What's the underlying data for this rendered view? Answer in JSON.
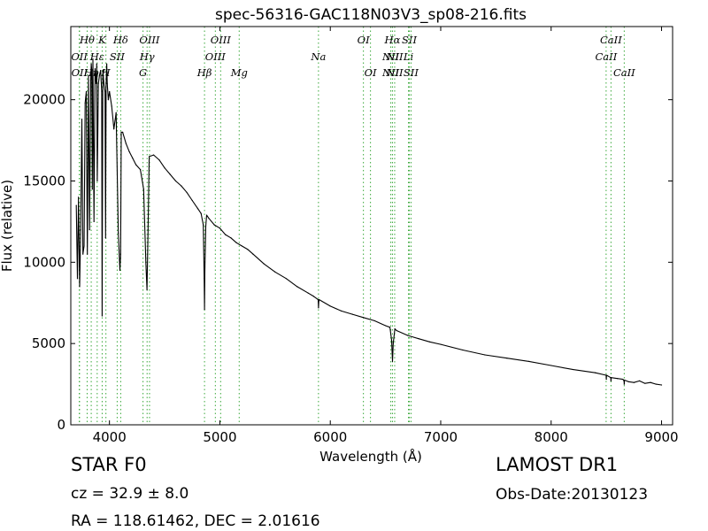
{
  "chart_data": {
    "type": "line",
    "title": "spec-56316-GAC118N03V3_sp08-216.fits",
    "xlabel": "Wavelength (Å)",
    "ylabel": "Flux (relative)",
    "xlim": [
      3650,
      9100
    ],
    "ylim": [
      0,
      24500
    ],
    "x_ticks": [
      4000,
      5000,
      6000,
      7000,
      8000,
      9000
    ],
    "y_ticks": [
      0,
      5000,
      10000,
      15000,
      20000
    ],
    "grid": false,
    "series": [
      {
        "color": "#000000",
        "x": [
          3700,
          3710,
          3720,
          3730,
          3740,
          3750,
          3760,
          3770,
          3780,
          3790,
          3800,
          3810,
          3820,
          3830,
          3835,
          3840,
          3845,
          3850,
          3860,
          3870,
          3880,
          3885,
          3890,
          3900,
          3910,
          3920,
          3930,
          3934,
          3940,
          3950,
          3960,
          3965,
          3970,
          3975,
          3980,
          3990,
          4000,
          4020,
          4040,
          4060,
          4080,
          4095,
          4101,
          4107,
          4120,
          4150,
          4180,
          4210,
          4240,
          4280,
          4310,
          4330,
          4340,
          4350,
          4360,
          4400,
          4450,
          4500,
          4550,
          4600,
          4650,
          4700,
          4750,
          4800,
          4830,
          4850,
          4858,
          4861,
          4864,
          4872,
          4880,
          4900,
          4950,
          5000,
          5050,
          5100,
          5150,
          5200,
          5250,
          5300,
          5400,
          5500,
          5600,
          5700,
          5800,
          5850,
          5890,
          5893,
          5896,
          5900,
          6000,
          6100,
          6200,
          6300,
          6400,
          6500,
          6540,
          6555,
          6563,
          6570,
          6585,
          6600,
          6700,
          6800,
          6900,
          7000,
          7200,
          7400,
          7600,
          7800,
          8000,
          8200,
          8400,
          8498,
          8500,
          8502,
          8540,
          8542,
          8544,
          8600,
          8650,
          8660,
          8662,
          8664,
          8700,
          8750,
          8800,
          8850,
          8900,
          8950,
          9000
        ],
        "values": [
          13500,
          9000,
          14000,
          8500,
          12000,
          18800,
          10500,
          11000,
          19800,
          20500,
          10500,
          21500,
          12000,
          21200,
          22200,
          21800,
          14500,
          22500,
          12500,
          21900,
          21000,
          22200,
          15000,
          21000,
          21500,
          21800,
          20500,
          6700,
          21800,
          21000,
          20500,
          11500,
          21000,
          22200,
          21000,
          20000,
          20500,
          19600,
          18200,
          19200,
          11800,
          9500,
          10500,
          18000,
          18000,
          17300,
          16800,
          16400,
          16000,
          15700,
          14500,
          10000,
          8300,
          12000,
          16500,
          16600,
          16300,
          15800,
          15400,
          15000,
          14700,
          14300,
          13800,
          13300,
          13000,
          12300,
          9000,
          7100,
          9500,
          12200,
          12900,
          12700,
          12300,
          12100,
          11700,
          11500,
          11200,
          11000,
          10800,
          10500,
          9900,
          9400,
          9000,
          8500,
          8100,
          7900,
          7700,
          7200,
          7600,
          7700,
          7300,
          7000,
          6800,
          6600,
          6400,
          6100,
          6000,
          5200,
          3900,
          5000,
          5900,
          5800,
          5500,
          5300,
          5100,
          4950,
          4600,
          4300,
          4100,
          3900,
          3650,
          3400,
          3200,
          3050,
          2800,
          3050,
          2900,
          2700,
          2900,
          2850,
          2800,
          2700,
          2500,
          2750,
          2650,
          2600,
          2700,
          2550,
          2600,
          2500,
          2450
        ]
      }
    ],
    "line_markers": [
      {
        "x": 3727,
        "labels": [
          "OII"
        ],
        "rows": [
          1
        ]
      },
      {
        "x": 3729,
        "labels": [
          "OII"
        ],
        "rows": [
          2
        ]
      },
      {
        "x": 3798,
        "labels": [
          "Hθ"
        ],
        "rows": [
          0
        ]
      },
      {
        "x": 3835,
        "labels": [
          "Hη"
        ],
        "rows": [
          2
        ]
      },
      {
        "x": 3889,
        "labels": [
          "Hε"
        ],
        "rows": [
          1
        ]
      },
      {
        "x": 3934,
        "labels": [
          "K"
        ],
        "rows": [
          0
        ]
      },
      {
        "x": 3968,
        "labels": [
          "H"
        ],
        "rows": [
          2
        ]
      },
      {
        "x": 4070,
        "labels": [
          "SII"
        ],
        "rows": [
          1
        ]
      },
      {
        "x": 4102,
        "labels": [
          "Hδ"
        ],
        "rows": [
          0
        ]
      },
      {
        "x": 4304,
        "labels": [
          "G"
        ],
        "rows": [
          2
        ]
      },
      {
        "x": 4341,
        "labels": [
          "Hγ"
        ],
        "rows": [
          1
        ]
      },
      {
        "x": 4363,
        "labels": [
          "OIII"
        ],
        "rows": [
          0
        ]
      },
      {
        "x": 4861,
        "labels": [
          "Hβ"
        ],
        "rows": [
          2
        ]
      },
      {
        "x": 4959,
        "labels": [
          "OIII"
        ],
        "rows": [
          1
        ]
      },
      {
        "x": 5007,
        "labels": [
          "OIII"
        ],
        "rows": [
          0
        ]
      },
      {
        "x": 5175,
        "labels": [
          "Mg"
        ],
        "rows": [
          2
        ]
      },
      {
        "x": 5893,
        "labels": [
          "Na"
        ],
        "rows": [
          1
        ]
      },
      {
        "x": 6300,
        "labels": [
          "OI"
        ],
        "rows": [
          0
        ]
      },
      {
        "x": 6364,
        "labels": [
          "OI"
        ],
        "rows": [
          2
        ]
      },
      {
        "x": 6548,
        "labels": [
          "NII"
        ],
        "rows": [
          1,
          2
        ]
      },
      {
        "x": 6563,
        "labels": [
          "Hα"
        ],
        "rows": [
          0
        ]
      },
      {
        "x": 6583,
        "labels": [
          "NII"
        ],
        "rows": [
          1,
          2
        ]
      },
      {
        "x": 6708,
        "labels": [
          "Li"
        ],
        "rows": [
          1
        ]
      },
      {
        "x": 6716,
        "labels": [
          "SII"
        ],
        "rows": [
          0
        ]
      },
      {
        "x": 6731,
        "labels": [
          "SII"
        ],
        "rows": [
          2
        ]
      },
      {
        "x": 8498,
        "labels": [
          "CaII"
        ],
        "rows": [
          1
        ]
      },
      {
        "x": 8542,
        "labels": [
          "CaII"
        ],
        "rows": [
          0
        ]
      },
      {
        "x": 8662,
        "labels": [
          "CaII"
        ],
        "rows": [
          2
        ]
      }
    ]
  },
  "info": {
    "class": "STAR   F0",
    "survey": "LAMOST DR1",
    "redshift": "cz = 32.9  ± 8.0",
    "obs_date": "Obs-Date:20130123",
    "coords": "RA = 118.61462, DEC = 2.01616"
  },
  "colors": {
    "marker": "#3aa83a",
    "spectrum": "#000000",
    "axis": "#000000"
  }
}
